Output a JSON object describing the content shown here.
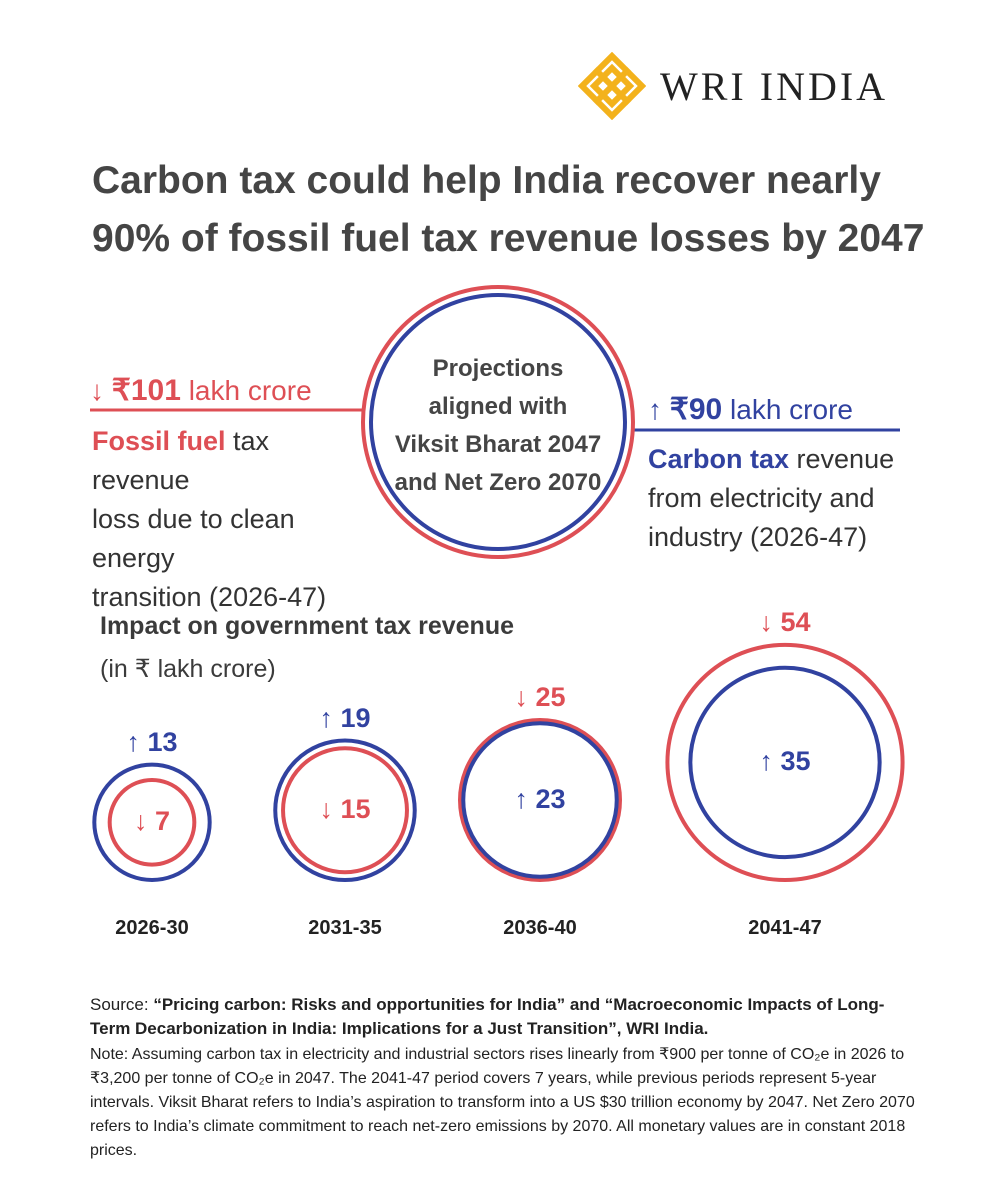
{
  "brand": {
    "name": "WRI INDIA"
  },
  "title": {
    "line1": "Carbon tax could help India recover nearly",
    "line2": "90% of fossil fuel tax revenue losses by 2047"
  },
  "summary": {
    "loss": {
      "arrow": "↓",
      "amount": "₹101",
      "unit": "lakh crore",
      "label_bold": "Fossil fuel",
      "label_rest_1": " tax revenue",
      "label_line2": "loss due to clean energy",
      "label_line3": "transition (2026-47)"
    },
    "gain": {
      "arrow": "↑",
      "amount": "₹90",
      "unit": "lakh crore",
      "label_bold": "Carbon tax",
      "label_rest_1": " revenue",
      "label_line2": "from electricity and",
      "label_line3": "industry (2026-47)"
    },
    "center": [
      "Projections",
      "aligned with",
      "Viksit Bharat 2047",
      "and Net Zero 2070"
    ]
  },
  "colors": {
    "loss": "#de4f55",
    "gain": "#3142a0"
  },
  "chart_data": {
    "type": "bubble",
    "title": "Impact on government tax revenue",
    "unit": "(in ₹ lakh crore)",
    "categories": [
      "2026-30",
      "2031-35",
      "2036-40",
      "2041-47"
    ],
    "series": [
      {
        "name": "Fossil fuel tax revenue loss",
        "direction": "down",
        "values": [
          7,
          15,
          25,
          54
        ]
      },
      {
        "name": "Carbon tax revenue",
        "direction": "up",
        "values": [
          13,
          19,
          23,
          35
        ]
      }
    ],
    "labels": {
      "loss": [
        "↓ 7",
        "↓ 15",
        "↓ 25",
        "↓ 54"
      ],
      "gain": [
        "↑ 13",
        "↑ 19",
        "↑ 23",
        "↑ 35"
      ]
    }
  },
  "source": {
    "prefix": "Source: ",
    "text": "“Pricing carbon: Risks and opportunities for India” and “Macroeconomic Impacts of Long-Term Decarbonization in India: Implications for a Just Transition”,  WRI India."
  },
  "note": {
    "text": "Note: Assuming carbon tax in electricity and industrial sectors rises linearly from ₹900 per tonne of CO₂e in 2026 to ₹3,200 per tonne of CO₂e in 2047. The 2041-47 period covers 7 years, while previous periods represent 5-year intervals. Viksit Bharat refers to India’s aspiration to transform into a US $30 trillion economy by 2047.  Net Zero 2070 refers to India’s climate commitment to reach net-zero emissions by 2070. All monetary values are in constant 2018 prices."
  }
}
